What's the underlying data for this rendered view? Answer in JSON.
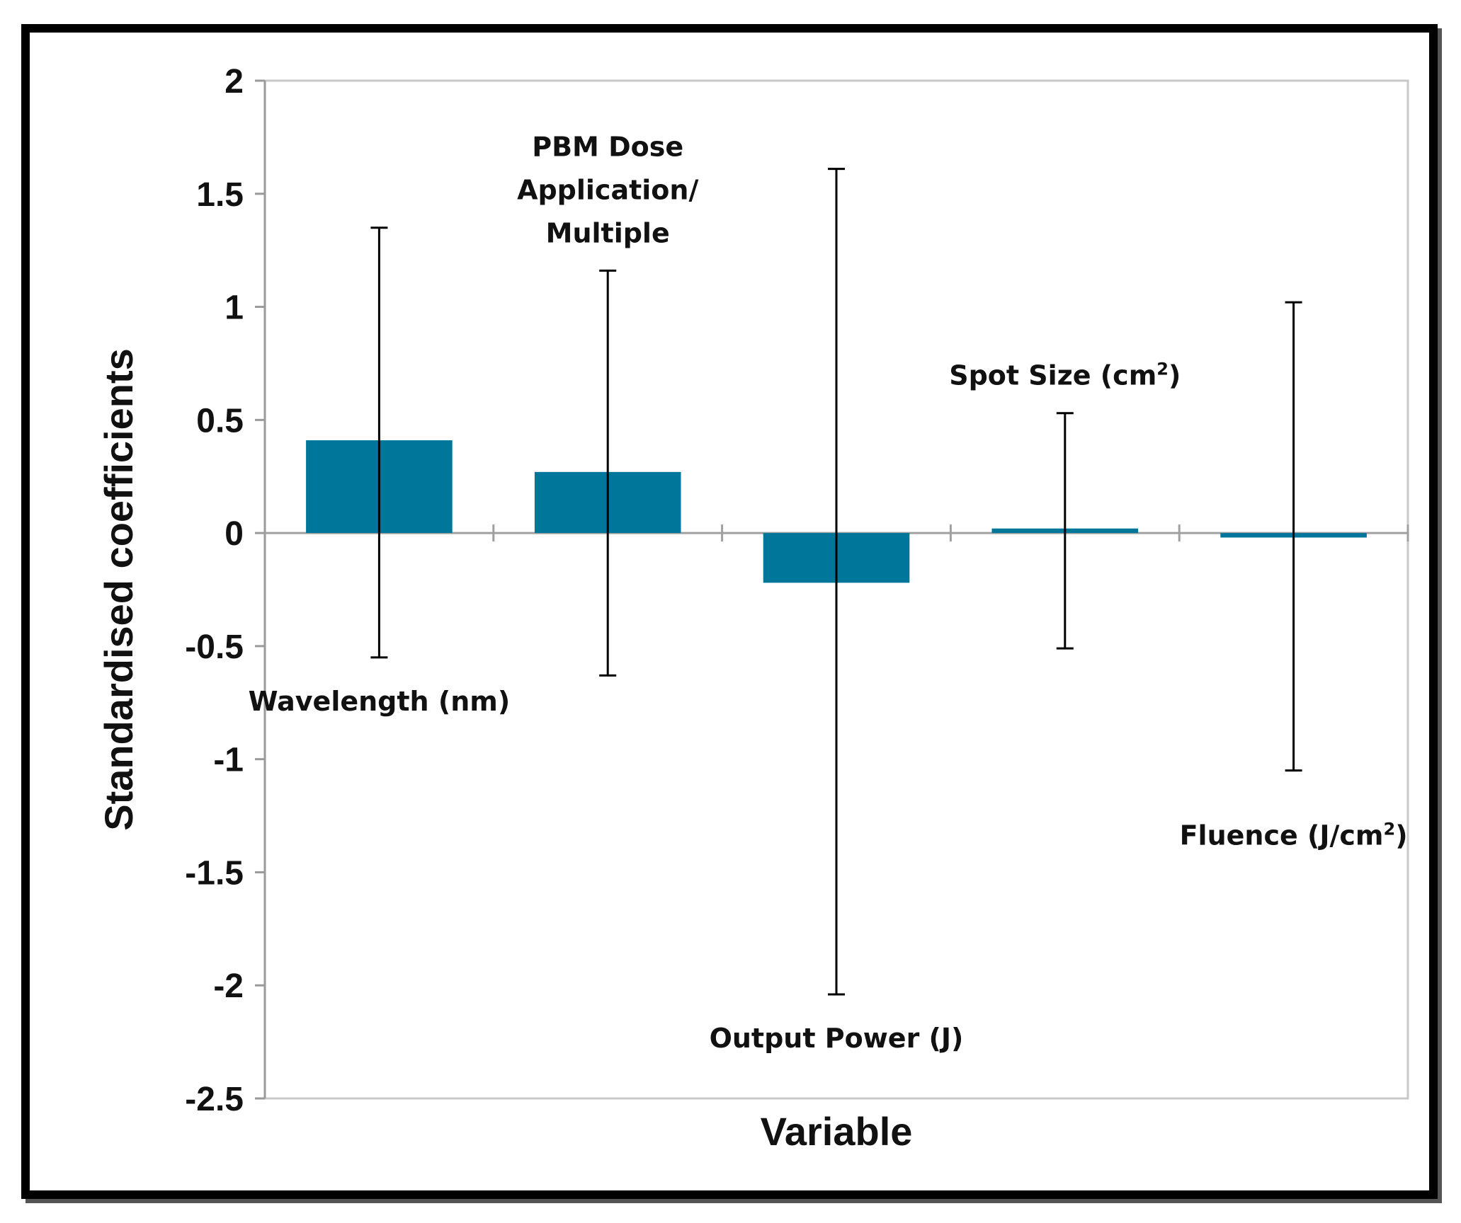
{
  "chart_data": {
    "type": "bar",
    "xlabel": "Variable",
    "ylabel": "Standardised coefficients",
    "ylim": [
      -2.5,
      2
    ],
    "yticks": [
      2,
      1.5,
      1,
      0.5,
      0,
      -0.5,
      -1,
      -1.5,
      -2,
      -2.5
    ],
    "ytick_labels": [
      "2",
      "1.5",
      "1",
      "0.5",
      "0",
      "-0.5",
      "-1",
      "-1.5",
      "-2",
      "-2.5"
    ],
    "color": "#00769a",
    "categories": [
      {
        "lines": [
          "Wavelength (nm)"
        ],
        "value": 0.41,
        "err_low": -0.55,
        "err_high": 1.35,
        "label_anchor": "below"
      },
      {
        "lines": [
          "PBM Dose",
          "Application/",
          "Multiple"
        ],
        "value": 0.27,
        "err_low": -0.63,
        "err_high": 1.16,
        "label_anchor": "above"
      },
      {
        "lines": [
          "Output Power (J)"
        ],
        "value": -0.22,
        "err_low": -2.04,
        "err_high": 1.61,
        "label_anchor": "below"
      },
      {
        "lines": [
          "Spot Size (cm",
          "2",
          ")"
        ],
        "value": 0.02,
        "err_low": -0.51,
        "err_high": 0.53,
        "label_anchor": "above",
        "superscript_index": 1
      },
      {
        "lines": [
          "Fluence (J/cm",
          "2",
          ")"
        ],
        "value": -0.02,
        "err_low": -1.05,
        "err_high": 1.02,
        "label_anchor": "below",
        "superscript_index": 1
      }
    ]
  }
}
